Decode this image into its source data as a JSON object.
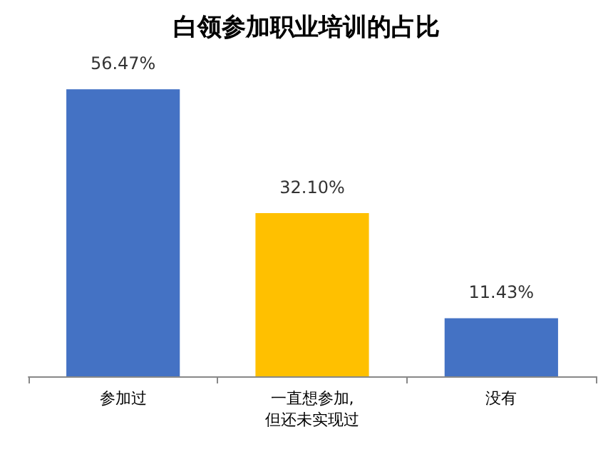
{
  "chart_data": {
    "type": "bar",
    "title": "白领参加职业培训的占比",
    "categories": [
      "参加过",
      "一直想参加,\n但还未实现过",
      "没有"
    ],
    "values": [
      56.47,
      32.1,
      11.43
    ],
    "colors": [
      "#4472c4",
      "#ffc000",
      "#4472c4"
    ],
    "value_labels": [
      "56.47%",
      "32.10%",
      "11.43%"
    ],
    "grid": false
  }
}
